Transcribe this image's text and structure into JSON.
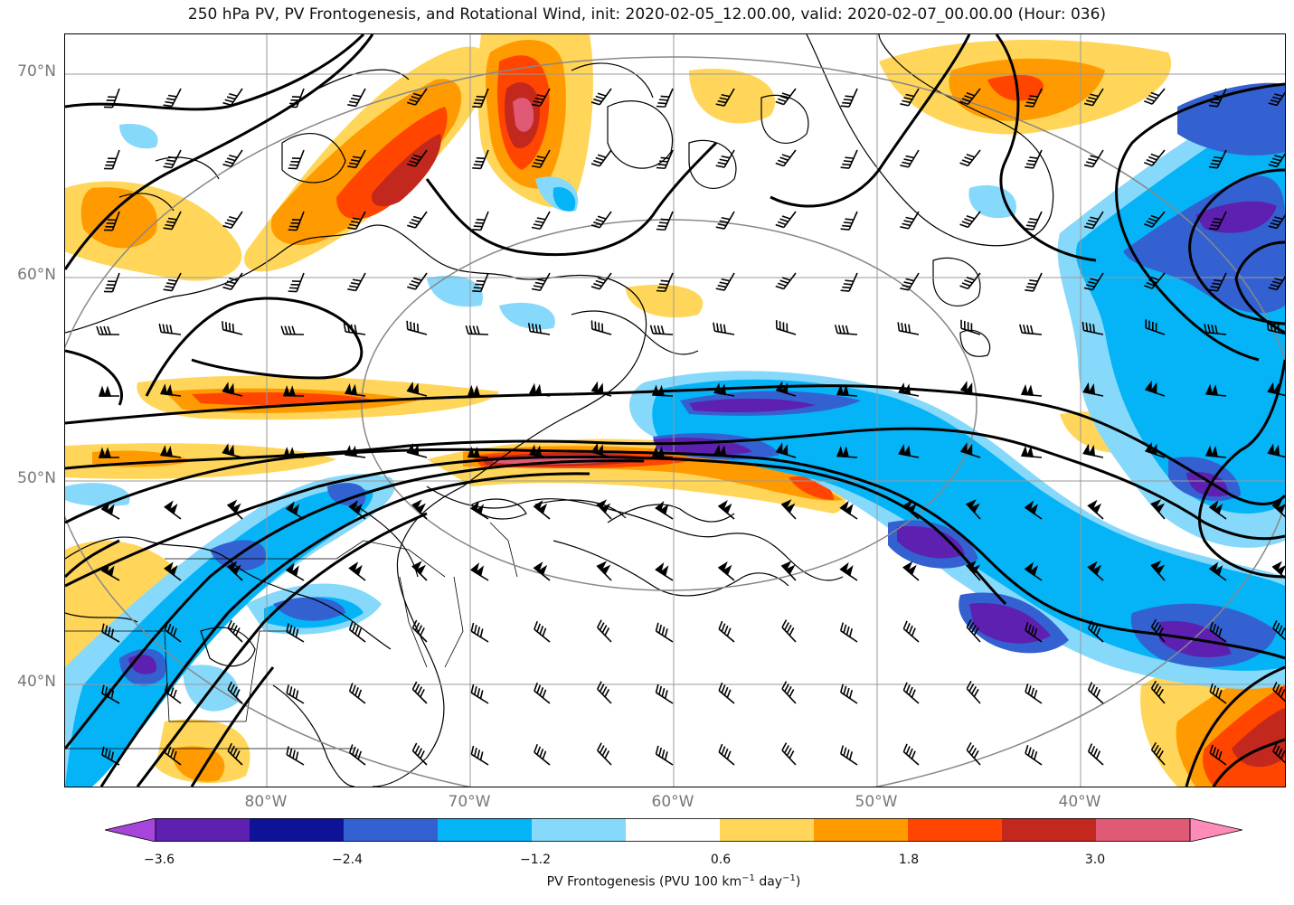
{
  "title": "250 hPa PV, PV Frontogenesis, and Rotational Wind, init: 2020-02-05_12.00.00, valid: 2020-02-07_00.00.00 (Hour: 036)",
  "lat_labels": [
    "70°N",
    "60°N",
    "50°N",
    "40°N"
  ],
  "lon_labels": [
    "80°W",
    "70°W",
    "60°W",
    "50°W",
    "40°W"
  ],
  "colorbar": {
    "ticks": [
      "−3.6",
      "−2.4",
      "−1.2",
      "0.6",
      "1.8",
      "3.0"
    ],
    "label_pre": "PV Frontogenesis (PVU 100 km",
    "label_exp1": "−1",
    "label_mid": " day",
    "label_exp2": "−1",
    "label_post": ")",
    "colors": [
      "#a645d9",
      "#5e20b0",
      "#0e1296",
      "#3461d1",
      "#05b3f7",
      "#86d9fa",
      "#ffffff",
      "#ffd659",
      "#ff9a00",
      "#ff4500",
      "#c2281d",
      "#e05a76",
      "#ff8cb8"
    ]
  },
  "map_colors": {
    "neg_strong": "#5e20b0",
    "neg_mid": "#3461d1",
    "neg_light": "#05b3f7",
    "neg_pale": "#86d9fa",
    "pos_pale": "#ffd659",
    "pos_mid": "#ff9a00",
    "pos_strong": "#ff4500",
    "pos_dark": "#c2281d",
    "pos_pink": "#e05a76"
  }
}
